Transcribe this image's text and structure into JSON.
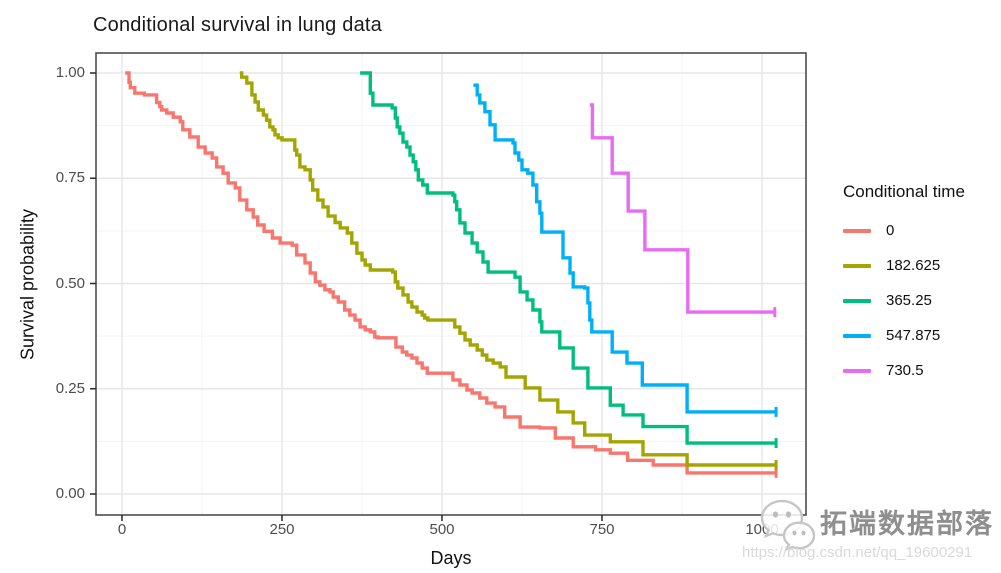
{
  "chart_data": {
    "type": "line",
    "variant": "kaplan-meier-step-survival",
    "title": "Conditional survival in lung data",
    "xlabel": "Days",
    "ylabel": "Survival probability",
    "grid": true,
    "legend_title": "Conditional time",
    "legend_position": "right",
    "x_ticks": {
      "values": [
        0,
        250,
        500,
        750,
        1000
      ],
      "labels": [
        "0",
        "250",
        "500",
        "750",
        "1000"
      ]
    },
    "y_ticks": {
      "values": [
        0,
        0.25,
        0.5,
        0.75,
        1.0
      ],
      "labels": [
        "0.00",
        "0.25",
        "0.50",
        "0.75",
        "1.00"
      ]
    },
    "x_minor": [
      125,
      375,
      625,
      875
    ],
    "y_minor": [
      0.125,
      0.375,
      0.625,
      0.875
    ],
    "xlim": [
      -40,
      1068
    ],
    "ylim": [
      -0.05,
      1.05
    ],
    "series": [
      {
        "name": "0",
        "color": "#F8766D",
        "points": [
          [
            5,
            1.0
          ],
          [
            11,
            0.978
          ],
          [
            13,
            0.965
          ],
          [
            20,
            0.952
          ],
          [
            35,
            0.948
          ],
          [
            54,
            0.93
          ],
          [
            59,
            0.92
          ],
          [
            62,
            0.912
          ],
          [
            70,
            0.905
          ],
          [
            80,
            0.895
          ],
          [
            91,
            0.884
          ],
          [
            95,
            0.865
          ],
          [
            106,
            0.848
          ],
          [
            119,
            0.824
          ],
          [
            130,
            0.81
          ],
          [
            141,
            0.798
          ],
          [
            148,
            0.777
          ],
          [
            158,
            0.762
          ],
          [
            166,
            0.739
          ],
          [
            177,
            0.727
          ],
          [
            184,
            0.698
          ],
          [
            195,
            0.675
          ],
          [
            205,
            0.658
          ],
          [
            212,
            0.639
          ],
          [
            222,
            0.624
          ],
          [
            235,
            0.608
          ],
          [
            247,
            0.596
          ],
          [
            266,
            0.591
          ],
          [
            273,
            0.568
          ],
          [
            286,
            0.549
          ],
          [
            294,
            0.525
          ],
          [
            302,
            0.504
          ],
          [
            309,
            0.496
          ],
          [
            317,
            0.485
          ],
          [
            325,
            0.48
          ],
          [
            330,
            0.468
          ],
          [
            338,
            0.456
          ],
          [
            348,
            0.437
          ],
          [
            356,
            0.425
          ],
          [
            364,
            0.413
          ],
          [
            372,
            0.397
          ],
          [
            380,
            0.39
          ],
          [
            388,
            0.385
          ],
          [
            395,
            0.373
          ],
          [
            400,
            0.371
          ],
          [
            428,
            0.349
          ],
          [
            438,
            0.337
          ],
          [
            445,
            0.33
          ],
          [
            453,
            0.323
          ],
          [
            461,
            0.311
          ],
          [
            469,
            0.299
          ],
          [
            477,
            0.287
          ],
          [
            517,
            0.271
          ],
          [
            528,
            0.259
          ],
          [
            539,
            0.247
          ],
          [
            547,
            0.24
          ],
          [
            559,
            0.228
          ],
          [
            570,
            0.216
          ],
          [
            583,
            0.207
          ],
          [
            598,
            0.183
          ],
          [
            622,
            0.159
          ],
          [
            653,
            0.157
          ],
          [
            677,
            0.133
          ],
          [
            705,
            0.112
          ],
          [
            740,
            0.105
          ],
          [
            763,
            0.097
          ],
          [
            790,
            0.08
          ],
          [
            830,
            0.069
          ],
          [
            883,
            0.05
          ],
          [
            1022,
            0.05
          ]
        ]
      },
      {
        "name": "182.625",
        "color": "#A3A500",
        "points": [
          [
            184,
            1.0
          ],
          [
            187,
            0.99
          ],
          [
            195,
            0.976
          ],
          [
            203,
            0.948
          ],
          [
            208,
            0.931
          ],
          [
            213,
            0.912
          ],
          [
            221,
            0.9
          ],
          [
            226,
            0.888
          ],
          [
            231,
            0.872
          ],
          [
            236,
            0.865
          ],
          [
            239,
            0.853
          ],
          [
            244,
            0.846
          ],
          [
            250,
            0.841
          ],
          [
            270,
            0.817
          ],
          [
            273,
            0.805
          ],
          [
            278,
            0.777
          ],
          [
            286,
            0.77
          ],
          [
            294,
            0.746
          ],
          [
            298,
            0.722
          ],
          [
            306,
            0.698
          ],
          [
            314,
            0.682
          ],
          [
            322,
            0.66
          ],
          [
            333,
            0.645
          ],
          [
            341,
            0.632
          ],
          [
            352,
            0.62
          ],
          [
            359,
            0.596
          ],
          [
            367,
            0.572
          ],
          [
            375,
            0.556
          ],
          [
            380,
            0.544
          ],
          [
            388,
            0.532
          ],
          [
            423,
            0.527
          ],
          [
            427,
            0.504
          ],
          [
            431,
            0.489
          ],
          [
            439,
            0.473
          ],
          [
            447,
            0.456
          ],
          [
            453,
            0.444
          ],
          [
            461,
            0.432
          ],
          [
            469,
            0.425
          ],
          [
            473,
            0.418
          ],
          [
            478,
            0.413
          ],
          [
            520,
            0.397
          ],
          [
            528,
            0.382
          ],
          [
            536,
            0.366
          ],
          [
            544,
            0.354
          ],
          [
            555,
            0.342
          ],
          [
            563,
            0.33
          ],
          [
            570,
            0.318
          ],
          [
            580,
            0.311
          ],
          [
            591,
            0.302
          ],
          [
            600,
            0.278
          ],
          [
            630,
            0.252
          ],
          [
            653,
            0.223
          ],
          [
            681,
            0.195
          ],
          [
            705,
            0.169
          ],
          [
            723,
            0.14
          ],
          [
            763,
            0.124
          ],
          [
            814,
            0.093
          ],
          [
            883,
            0.069
          ],
          [
            1022,
            0.069
          ]
        ]
      },
      {
        "name": "365.25",
        "color": "#00BF7D",
        "points": [
          [
            372,
            1.0
          ],
          [
            388,
            0.952
          ],
          [
            392,
            0.924
          ],
          [
            422,
            0.917
          ],
          [
            427,
            0.893
          ],
          [
            430,
            0.872
          ],
          [
            434,
            0.857
          ],
          [
            439,
            0.836
          ],
          [
            445,
            0.824
          ],
          [
            450,
            0.805
          ],
          [
            455,
            0.789
          ],
          [
            459,
            0.77
          ],
          [
            463,
            0.746
          ],
          [
            470,
            0.734
          ],
          [
            477,
            0.715
          ],
          [
            517,
            0.71
          ],
          [
            520,
            0.694
          ],
          [
            523,
            0.675
          ],
          [
            528,
            0.644
          ],
          [
            536,
            0.62
          ],
          [
            547,
            0.596
          ],
          [
            555,
            0.575
          ],
          [
            564,
            0.551
          ],
          [
            572,
            0.527
          ],
          [
            614,
            0.515
          ],
          [
            622,
            0.48
          ],
          [
            633,
            0.461
          ],
          [
            642,
            0.437
          ],
          [
            653,
            0.409
          ],
          [
            656,
            0.385
          ],
          [
            684,
            0.347
          ],
          [
            705,
            0.299
          ],
          [
            728,
            0.252
          ],
          [
            763,
            0.211
          ],
          [
            783,
            0.188
          ],
          [
            814,
            0.16
          ],
          [
            883,
            0.121
          ],
          [
            1022,
            0.121
          ]
        ]
      },
      {
        "name": "547.875",
        "color": "#00B0F6",
        "points": [
          [
            549,
            0.971
          ],
          [
            555,
            0.948
          ],
          [
            559,
            0.929
          ],
          [
            567,
            0.908
          ],
          [
            575,
            0.877
          ],
          [
            583,
            0.841
          ],
          [
            611,
            0.834
          ],
          [
            614,
            0.81
          ],
          [
            620,
            0.793
          ],
          [
            625,
            0.77
          ],
          [
            634,
            0.762
          ],
          [
            642,
            0.734
          ],
          [
            648,
            0.694
          ],
          [
            653,
            0.667
          ],
          [
            656,
            0.622
          ],
          [
            689,
            0.561
          ],
          [
            700,
            0.525
          ],
          [
            705,
            0.492
          ],
          [
            723,
            0.489
          ],
          [
            728,
            0.454
          ],
          [
            731,
            0.413
          ],
          [
            734,
            0.385
          ],
          [
            766,
            0.337
          ],
          [
            789,
            0.311
          ],
          [
            813,
            0.259
          ],
          [
            883,
            0.195
          ],
          [
            1022,
            0.195
          ]
        ]
      },
      {
        "name": "730.5",
        "color": "#E76BF3",
        "points": [
          [
            731,
            0.924
          ],
          [
            735,
            0.846
          ],
          [
            766,
            0.762
          ],
          [
            791,
            0.672
          ],
          [
            817,
            0.58
          ],
          [
            884,
            0.432
          ],
          [
            1020,
            0.432
          ]
        ]
      }
    ]
  },
  "watermark": {
    "brand": "拓端数据部落",
    "url": "https://blog.csdn.net/qq_19600291",
    "logo": "wechat-chat-bubbles-icon"
  }
}
